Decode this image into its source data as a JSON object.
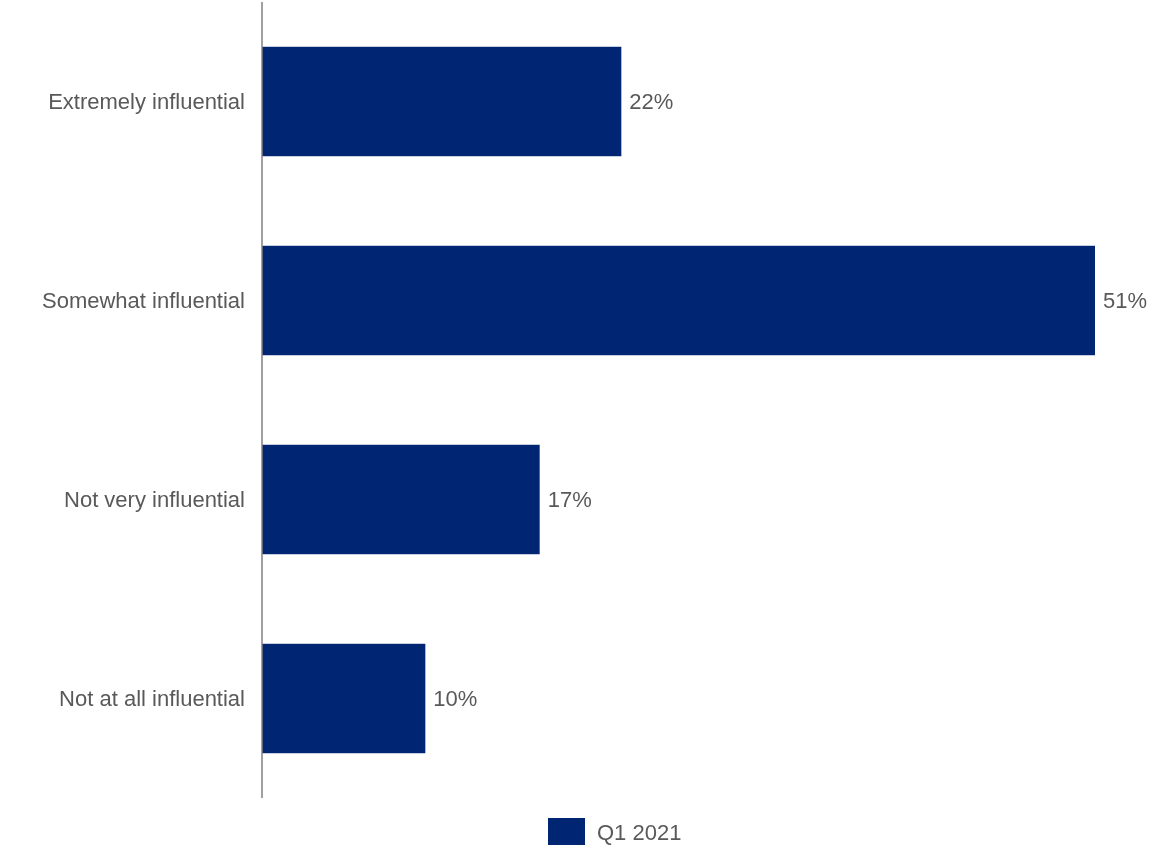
{
  "chart_data": {
    "type": "bar",
    "orientation": "horizontal",
    "categories": [
      "Extremely influential",
      "Somewhat influential",
      "Not very influential",
      "Not at all influential"
    ],
    "series": [
      {
        "name": "Q1 2021",
        "color": "#002673",
        "values": [
          22,
          51,
          17,
          10
        ],
        "value_labels": [
          "22%",
          "51%",
          "17%",
          "10%"
        ]
      }
    ],
    "legend": "bottom"
  }
}
